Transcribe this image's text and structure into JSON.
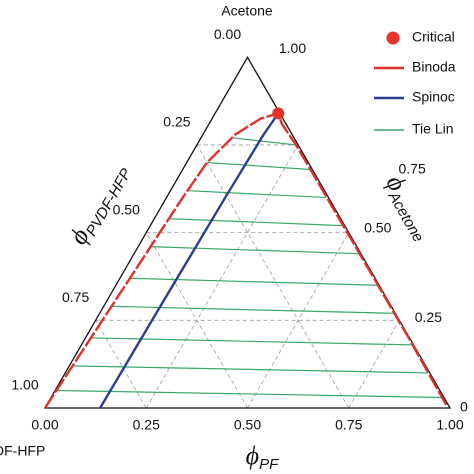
{
  "chart_data": {
    "type": "ternary",
    "top_label": "Acetone",
    "left_corner_label": "DF-HFP",
    "bottom_axis": {
      "symbol": "ϕ",
      "name": "PF"
    },
    "left_axis": {
      "symbol": "ϕ",
      "name": "PVDF-HFP"
    },
    "right_axis": {
      "symbol": "ϕ",
      "name": "Acetone"
    },
    "xticks": [
      {
        "value": 0,
        "label": "0.00"
      },
      0.25,
      {
        "value": 0.5,
        "label": "0.50"
      },
      0.75,
      {
        "value": 1,
        "label": "1.00"
      }
    ],
    "left_ticks": [
      {
        "value": 0,
        "label": "0.00"
      },
      0.25,
      {
        "value": 0.5,
        "label": "0.50"
      },
      0.75,
      {
        "value": 1,
        "label": "1.00"
      }
    ],
    "right_ticks": [
      {
        "value": 1,
        "label": "1.00"
      },
      0.75,
      {
        "value": 0.5,
        "label": "0.50"
      },
      0.25,
      0
    ],
    "grid": true,
    "critical": {
      "name": "Critical",
      "color": "#e8322b",
      "point": [
        0.156,
        0.84
      ]
    },
    "binodal": {
      "name": "Binoda",
      "color": "#e0302a",
      "points": [
        [
          0,
          0
        ],
        [
          0.01,
          0.15
        ],
        [
          0.02,
          0.3
        ],
        [
          0.03,
          0.45
        ],
        [
          0.04,
          0.6
        ],
        [
          0.05,
          0.7
        ],
        [
          0.08,
          0.78
        ],
        [
          0.12,
          0.825
        ],
        [
          0.156,
          0.84
        ],
        [
          0.18,
          0.81
        ],
        [
          0.25,
          0.745
        ],
        [
          0.4,
          0.596
        ],
        [
          0.6,
          0.397
        ],
        [
          0.8,
          0.198
        ],
        [
          0.99,
          0.005
        ]
      ]
    },
    "spinodal": {
      "name": "Spinoc",
      "color": "#2b3f8e",
      "points": [
        [
          0.136,
          0
        ],
        [
          0.14,
          0.3
        ],
        [
          0.145,
          0.6
        ],
        [
          0.15,
          0.78
        ],
        [
          0.156,
          0.84
        ]
      ]
    },
    "tie_lines": {
      "name": "Tie Lin",
      "color": "#3aa86a",
      "lines": [
        [
          [
            0.004,
            0.05
          ],
          [
            0.965,
            0.03
          ]
        ],
        [
          [
            0.008,
            0.12
          ],
          [
            0.895,
            0.1
          ]
        ],
        [
          [
            0.011,
            0.2
          ],
          [
            0.815,
            0.18
          ]
        ],
        [
          [
            0.017,
            0.29
          ],
          [
            0.725,
            0.27
          ]
        ],
        [
          [
            0.022,
            0.37
          ],
          [
            0.645,
            0.35
          ]
        ],
        [
          [
            0.028,
            0.46
          ],
          [
            0.555,
            0.44
          ]
        ],
        [
          [
            0.033,
            0.54
          ],
          [
            0.475,
            0.52
          ]
        ],
        [
          [
            0.039,
            0.62
          ],
          [
            0.395,
            0.6
          ]
        ],
        [
          [
            0.05,
            0.7
          ],
          [
            0.315,
            0.68
          ]
        ],
        [
          [
            0.08,
            0.77
          ],
          [
            0.245,
            0.75
          ]
        ]
      ]
    }
  }
}
